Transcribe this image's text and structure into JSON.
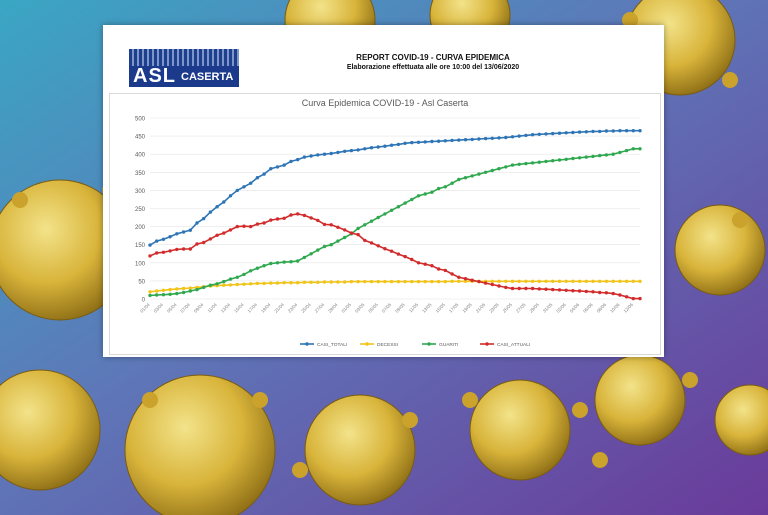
{
  "header": {
    "logo_text": "ASL",
    "logo_city": "CASERTA",
    "report_title": "REPORT COVID-19 - CURVA EPIDEMICA",
    "report_subtitle": "Elaborazione effettuata alle ore 10:00 del 13/06/2020"
  },
  "colors": {
    "casi_totali": "#2e75b6",
    "decessi": "#f0c419",
    "guariti": "#2fa84f",
    "casi_attuali": "#d22b2b"
  },
  "chart_data": {
    "type": "line",
    "title": "Curva Epidemica COVID-19 - Asl Caserta",
    "xlabel": "",
    "ylabel": "",
    "ylim": [
      0,
      500
    ],
    "yticks": [
      0,
      50,
      100,
      150,
      200,
      250,
      300,
      350,
      400,
      450,
      500
    ],
    "grid": true,
    "legend": "bottom",
    "categories": [
      "01/04",
      "02/04",
      "03/04",
      "04/04",
      "05/04",
      "06/04",
      "07/04",
      "08/04",
      "09/04",
      "10/04",
      "11/04",
      "12/04",
      "13/04",
      "14/04",
      "15/04",
      "16/04",
      "17/04",
      "18/04",
      "19/04",
      "20/04",
      "21/04",
      "22/04",
      "23/04",
      "24/04",
      "25/04",
      "26/04",
      "27/04",
      "28/04",
      "29/04",
      "30/04",
      "01/05",
      "02/05",
      "03/05",
      "04/05",
      "05/05",
      "06/05",
      "07/05",
      "08/05",
      "09/05",
      "10/05",
      "11/05",
      "12/05",
      "13/05",
      "14/05",
      "15/05",
      "16/05",
      "17/05",
      "18/05",
      "19/05",
      "20/05",
      "21/05",
      "22/05",
      "23/05",
      "24/05",
      "25/05",
      "26/05",
      "27/05",
      "28/05",
      "29/05",
      "30/05",
      "31/05",
      "01/06",
      "02/06",
      "03/06",
      "04/06",
      "05/06",
      "06/06",
      "07/06",
      "08/06",
      "09/06",
      "10/06",
      "11/06",
      "12/06",
      "13/06"
    ],
    "series": [
      {
        "name": "CASI_TOTALI",
        "values": [
          149,
          160,
          165,
          172,
          180,
          185,
          190,
          210,
          222,
          240,
          255,
          268,
          285,
          300,
          310,
          320,
          335,
          345,
          360,
          365,
          370,
          380,
          385,
          392,
          395,
          398,
          400,
          402,
          405,
          408,
          410,
          412,
          415,
          418,
          420,
          422,
          425,
          427,
          430,
          432,
          433,
          434,
          435,
          436,
          437,
          438,
          439,
          440,
          441,
          442,
          443,
          444,
          445,
          446,
          448,
          450,
          452,
          454,
          455,
          456,
          457,
          458,
          459,
          460,
          461,
          462,
          463,
          463,
          464,
          464,
          465,
          465,
          465,
          465
        ]
      },
      {
        "name": "DECESSI",
        "values": [
          20,
          22,
          24,
          26,
          28,
          29,
          30,
          32,
          34,
          36,
          37,
          38,
          39,
          40,
          41,
          42,
          43,
          43,
          44,
          44,
          45,
          45,
          45,
          46,
          46,
          46,
          47,
          47,
          47,
          47,
          48,
          48,
          48,
          48,
          48,
          48,
          48,
          48,
          48,
          48,
          48,
          48,
          48,
          48,
          48,
          49,
          49,
          49,
          49,
          49,
          49,
          49,
          49,
          49,
          49,
          49,
          49,
          49,
          49,
          49,
          49,
          49,
          49,
          49,
          49,
          49,
          49,
          49,
          49,
          49,
          49,
          49,
          49,
          49
        ]
      },
      {
        "name": "GUARITI",
        "values": [
          10,
          11,
          12,
          13,
          15,
          18,
          22,
          26,
          32,
          38,
          42,
          48,
          55,
          60,
          68,
          78,
          85,
          92,
          98,
          100,
          102,
          103,
          105,
          115,
          125,
          135,
          145,
          150,
          160,
          170,
          180,
          195,
          205,
          215,
          225,
          235,
          245,
          255,
          265,
          275,
          285,
          290,
          295,
          305,
          310,
          320,
          330,
          335,
          340,
          345,
          350,
          355,
          360,
          365,
          370,
          372,
          374,
          376,
          378,
          380,
          382,
          384,
          386,
          388,
          390,
          392,
          394,
          396,
          398,
          400,
          405,
          410,
          415,
          415
        ]
      },
      {
        "name": "CASI_ATTUALI",
        "values": [
          119,
          127,
          129,
          133,
          137,
          138,
          138,
          152,
          156,
          166,
          176,
          182,
          191,
          200,
          201,
          200,
          207,
          210,
          218,
          221,
          223,
          232,
          235,
          231,
          224,
          217,
          206,
          205,
          198,
          191,
          182,
          178,
          162,
          155,
          147,
          139,
          132,
          124,
          117,
          109,
          100,
          96,
          92,
          83,
          79,
          69,
          60,
          56,
          52,
          48,
          44,
          40,
          36,
          32,
          29,
          29,
          29,
          29,
          28,
          27,
          26,
          25,
          24,
          23,
          22,
          21,
          20,
          18,
          17,
          15,
          11,
          6,
          1,
          1
        ]
      }
    ]
  }
}
